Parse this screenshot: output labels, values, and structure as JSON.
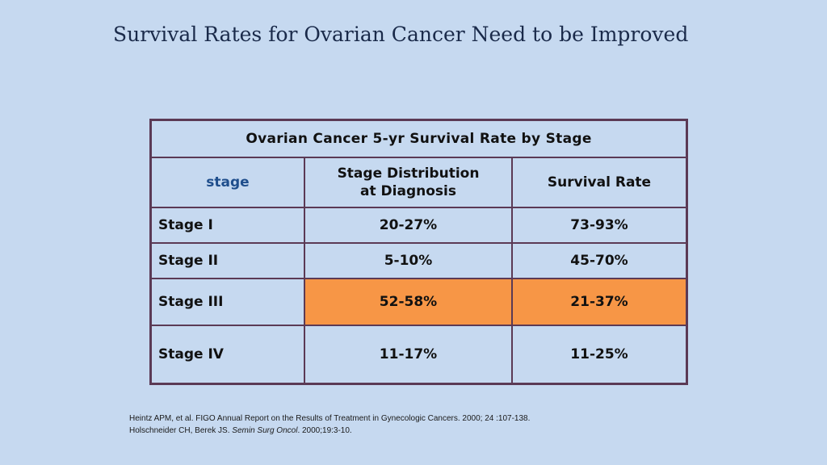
{
  "slide": {
    "title": "Survival Rates for Ovarian Cancer Need to be Improved"
  },
  "table": {
    "caption": "Ovarian Cancer 5-yr Survival Rate by Stage",
    "headers": {
      "stage": "stage",
      "distribution": "Stage Distribution at Diagnosis",
      "survival": "Survival Rate"
    },
    "rows": [
      {
        "stage": "Stage I",
        "distribution": "20-27%",
        "survival": "73-93%",
        "highlighted": false
      },
      {
        "stage": "Stage II",
        "distribution": "5-10%",
        "survival": "45-70%",
        "highlighted": false
      },
      {
        "stage": "Stage III",
        "distribution": "52-58%",
        "survival": "21-37%",
        "highlighted": true
      },
      {
        "stage": "Stage IV",
        "distribution": "11-17%",
        "survival": "11-25%",
        "highlighted": false
      }
    ],
    "highlight_color": "#f79646",
    "border_color": "#5b3a55"
  },
  "references": {
    "ref1": "Heintz APM, et al. FIGO Annual Report on the Results of Treatment in Gynecologic Cancers. 2000; 24 :107-138.",
    "ref2_authors": "Holschneider CH, Berek JS. ",
    "ref2_journal": "Semin Surg Oncol",
    "ref2_rest": ". 2000;19:3-10."
  },
  "colors": {
    "background": "#c6d9f0"
  }
}
